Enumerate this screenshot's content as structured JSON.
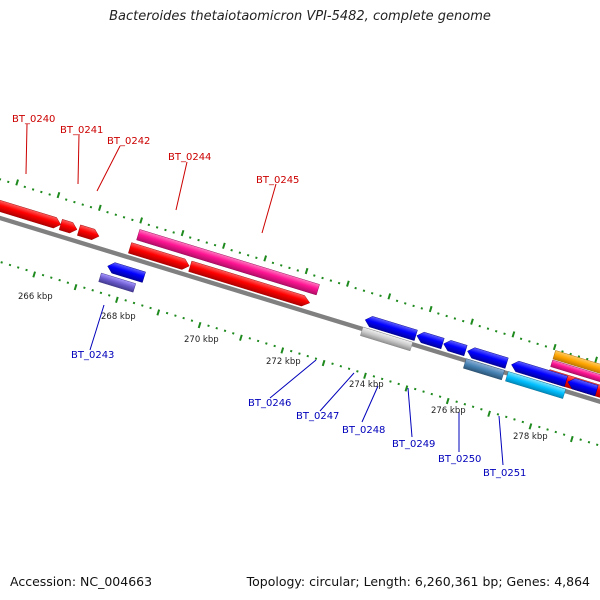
{
  "title": "Bacteroides thetaiotaomicron VPI-5482, complete genome",
  "footer": {
    "accession": "Accession: NC_004663",
    "summary": "Topology: circular; Length: 6,260,361 bp; Genes: 4,864"
  },
  "colors": {
    "backbone": "#7a7a7a",
    "tick": "#1e8a1e",
    "forward_label": "#cc0000",
    "reverse_label": "#0000bb"
  },
  "scale_labels": [
    "266 kbp",
    "268 kbp",
    "270 kbp",
    "272 kbp",
    "274 kbp",
    "276 kbp",
    "278 kbp"
  ],
  "forward_genes": [
    {
      "id": "BT_0240",
      "color": "#ff0000"
    },
    {
      "id": "BT_0241",
      "color": "#ff0000"
    },
    {
      "id": "BT_0242",
      "color": "#ff0000"
    },
    {
      "id": "BT_0244",
      "color": "#ff1493"
    },
    {
      "id": "BT_0245",
      "color": "#ff0000"
    }
  ],
  "reverse_genes": [
    {
      "id": "BT_0243",
      "color": "#0000ff"
    },
    {
      "id": "BT_0246",
      "color": "#0000ff"
    },
    {
      "id": "BT_0247",
      "color": "#0000ff"
    },
    {
      "id": "BT_0248",
      "color": "#0000ff"
    },
    {
      "id": "BT_0249",
      "color": "#0000ff"
    },
    {
      "id": "BT_0250",
      "color": "#00bfff"
    },
    {
      "id": "BT_0251",
      "color": "#0000ff"
    }
  ]
}
